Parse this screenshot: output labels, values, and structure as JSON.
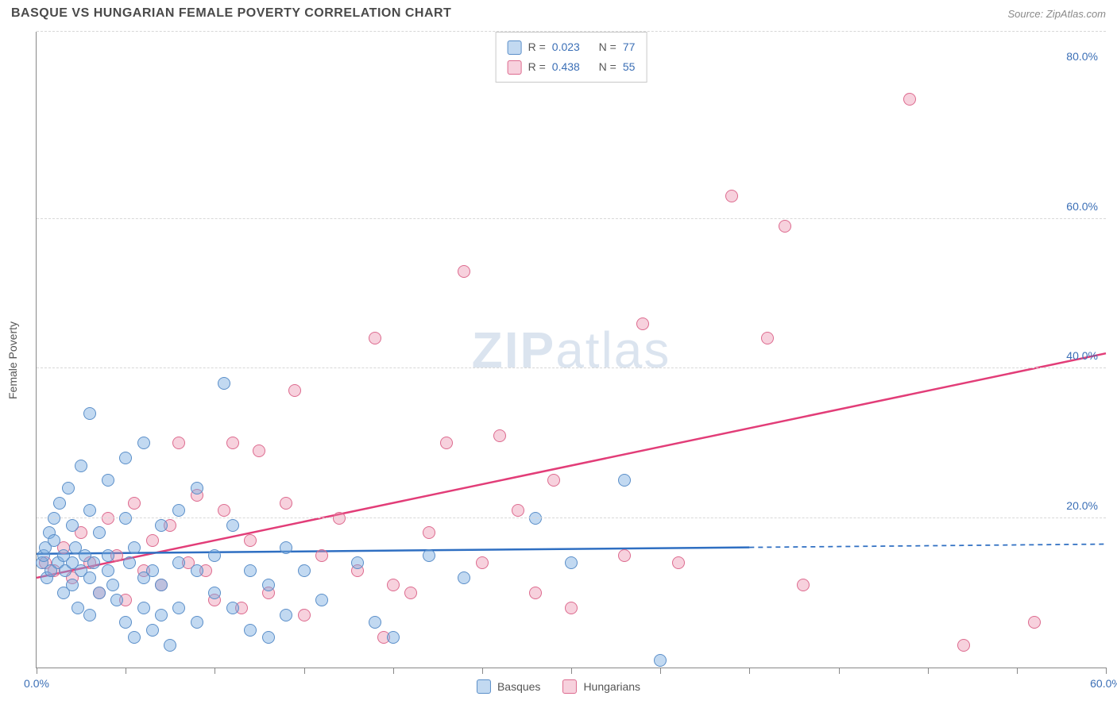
{
  "title": "BASQUE VS HUNGARIAN FEMALE POVERTY CORRELATION CHART",
  "source": "Source: ZipAtlas.com",
  "ylabel": "Female Poverty",
  "watermark": {
    "strong": "ZIP",
    "light": "atlas"
  },
  "xlim": [
    0,
    60
  ],
  "ylim": [
    0,
    85
  ],
  "ytick_labels": [
    {
      "v": 20,
      "label": "20.0%"
    },
    {
      "v": 40,
      "label": "40.0%"
    },
    {
      "v": 60,
      "label": "60.0%"
    },
    {
      "v": 80,
      "label": "80.0%"
    }
  ],
  "gridlines_y": [
    20,
    40,
    60,
    85
  ],
  "xticks": [
    0,
    5,
    10,
    15,
    20,
    25,
    30,
    35,
    40,
    45,
    50,
    55,
    60
  ],
  "xtick_labels": [
    {
      "v": 0,
      "label": "0.0%"
    },
    {
      "v": 60,
      "label": "60.0%"
    }
  ],
  "series": {
    "basques": {
      "label": "Basques",
      "fill": "rgba(120,170,225,0.45)",
      "stroke": "#5b8fc9",
      "R": "0.023",
      "N": "77",
      "trend": {
        "y_at_x0": 15.2,
        "y_at_x60": 16.5,
        "solid_until_x": 40
      },
      "points": [
        [
          0.3,
          14
        ],
        [
          0.4,
          15
        ],
        [
          0.5,
          16
        ],
        [
          0.6,
          12
        ],
        [
          0.7,
          18
        ],
        [
          0.8,
          13
        ],
        [
          1,
          17
        ],
        [
          1,
          20
        ],
        [
          1.2,
          14
        ],
        [
          1.3,
          22
        ],
        [
          1.5,
          10
        ],
        [
          1.5,
          15
        ],
        [
          1.6,
          13
        ],
        [
          1.8,
          24
        ],
        [
          2,
          11
        ],
        [
          2,
          19
        ],
        [
          2,
          14
        ],
        [
          2.2,
          16
        ],
        [
          2.3,
          8
        ],
        [
          2.5,
          13
        ],
        [
          2.5,
          27
        ],
        [
          2.7,
          15
        ],
        [
          3,
          21
        ],
        [
          3,
          12
        ],
        [
          3,
          34
        ],
        [
          3,
          7
        ],
        [
          3.2,
          14
        ],
        [
          3.5,
          18
        ],
        [
          3.5,
          10
        ],
        [
          4,
          25
        ],
        [
          4,
          13
        ],
        [
          4,
          15
        ],
        [
          4.3,
          11
        ],
        [
          4.5,
          9
        ],
        [
          5,
          20
        ],
        [
          5,
          6
        ],
        [
          5,
          28
        ],
        [
          5.2,
          14
        ],
        [
          5.5,
          16
        ],
        [
          5.5,
          4
        ],
        [
          6,
          12
        ],
        [
          6,
          30
        ],
        [
          6,
          8
        ],
        [
          6.5,
          13
        ],
        [
          6.5,
          5
        ],
        [
          7,
          19
        ],
        [
          7,
          11
        ],
        [
          7,
          7
        ],
        [
          7.5,
          3
        ],
        [
          8,
          14
        ],
        [
          8,
          21
        ],
        [
          8,
          8
        ],
        [
          9,
          6
        ],
        [
          9,
          13
        ],
        [
          9,
          24
        ],
        [
          10,
          10
        ],
        [
          10,
          15
        ],
        [
          10.5,
          38
        ],
        [
          11,
          8
        ],
        [
          11,
          19
        ],
        [
          12,
          5
        ],
        [
          12,
          13
        ],
        [
          13,
          11
        ],
        [
          13,
          4
        ],
        [
          14,
          16
        ],
        [
          14,
          7
        ],
        [
          15,
          13
        ],
        [
          16,
          9
        ],
        [
          18,
          14
        ],
        [
          19,
          6
        ],
        [
          20,
          4
        ],
        [
          22,
          15
        ],
        [
          24,
          12
        ],
        [
          28,
          20
        ],
        [
          30,
          14
        ],
        [
          33,
          25
        ],
        [
          35,
          1
        ]
      ]
    },
    "hungarians": {
      "label": "Hungarians",
      "fill": "rgba(235,140,170,0.40)",
      "stroke": "#dd6b8f",
      "R": "0.438",
      "N": "55",
      "trend": {
        "y_at_x0": 12,
        "y_at_x60": 42,
        "solid_until_x": 60
      },
      "points": [
        [
          0.5,
          14
        ],
        [
          1,
          13
        ],
        [
          1.5,
          16
        ],
        [
          2,
          12
        ],
        [
          2.5,
          18
        ],
        [
          3,
          14
        ],
        [
          3.5,
          10
        ],
        [
          4,
          20
        ],
        [
          4.5,
          15
        ],
        [
          5,
          9
        ],
        [
          5.5,
          22
        ],
        [
          6,
          13
        ],
        [
          6.5,
          17
        ],
        [
          7,
          11
        ],
        [
          7.5,
          19
        ],
        [
          8,
          30
        ],
        [
          8.5,
          14
        ],
        [
          9,
          23
        ],
        [
          9.5,
          13
        ],
        [
          10,
          9
        ],
        [
          10.5,
          21
        ],
        [
          11,
          30
        ],
        [
          11.5,
          8
        ],
        [
          12,
          17
        ],
        [
          12.5,
          29
        ],
        [
          13,
          10
        ],
        [
          14,
          22
        ],
        [
          14.5,
          37
        ],
        [
          15,
          7
        ],
        [
          16,
          15
        ],
        [
          17,
          20
        ],
        [
          18,
          13
        ],
        [
          19,
          44
        ],
        [
          19.5,
          4
        ],
        [
          20,
          11
        ],
        [
          21,
          10
        ],
        [
          22,
          18
        ],
        [
          23,
          30
        ],
        [
          24,
          53
        ],
        [
          25,
          14
        ],
        [
          26,
          31
        ],
        [
          27,
          21
        ],
        [
          28,
          10
        ],
        [
          29,
          25
        ],
        [
          30,
          8
        ],
        [
          33,
          15
        ],
        [
          34,
          46
        ],
        [
          36,
          14
        ],
        [
          39,
          63
        ],
        [
          41,
          44
        ],
        [
          42,
          59
        ],
        [
          43,
          11
        ],
        [
          49,
          76
        ],
        [
          52,
          3
        ],
        [
          56,
          6
        ]
      ]
    }
  },
  "legend_layout": {
    "text_R": "R =",
    "text_N": "N ="
  }
}
